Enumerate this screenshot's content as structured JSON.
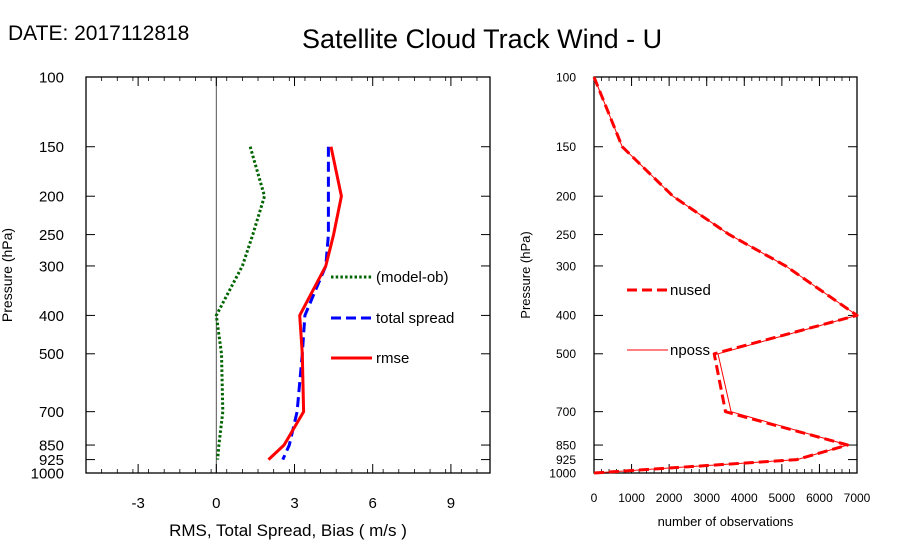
{
  "header": {
    "date_label": "DATE: 2017112818",
    "title": "Satellite Cloud Track Wind - U"
  },
  "chart_data": [
    {
      "type": "line",
      "panel": "left",
      "xlabel": "RMS, Total Spread, Bias ( m/s )",
      "ylabel": "Pressure (hPa)",
      "xlim": [
        -5,
        10.5
      ],
      "ylim": [
        1000,
        100
      ],
      "y_scale": "log",
      "x_ticks": [
        -3,
        0,
        3,
        6,
        9
      ],
      "x_tick_labels": [
        "-3",
        "0",
        "3",
        "6",
        "9"
      ],
      "y_ticks": [
        100,
        150,
        200,
        250,
        300,
        400,
        500,
        700,
        850,
        925,
        1000
      ],
      "y_tick_labels": [
        "100",
        "150",
        "200",
        "250",
        "300",
        "400",
        "500",
        "700",
        "850",
        "925",
        "1000"
      ],
      "zero_line": 0,
      "legend_placement": "right-middle",
      "series": [
        {
          "name": "(model-ob)",
          "color": "#006400",
          "style": "dotted",
          "points": [
            [
              1.3,
              150
            ],
            [
              1.85,
              200
            ],
            [
              1.4,
              250
            ],
            [
              1.0,
              300
            ],
            [
              0.0,
              400
            ],
            [
              0.2,
              500
            ],
            [
              0.25,
              700
            ],
            [
              0.1,
              850
            ],
            [
              0.05,
              925
            ]
          ]
        },
        {
          "name": "total spread",
          "color": "#0000ff",
          "style": "dashed",
          "points": [
            [
              4.3,
              150
            ],
            [
              4.3,
              200
            ],
            [
              4.3,
              250
            ],
            [
              4.2,
              300
            ],
            [
              3.4,
              400
            ],
            [
              3.3,
              500
            ],
            [
              3.1,
              700
            ],
            [
              2.8,
              850
            ],
            [
              2.55,
              925
            ]
          ]
        },
        {
          "name": "rmse",
          "color": "#ff0000",
          "style": "solid",
          "points": [
            [
              4.4,
              150
            ],
            [
              4.8,
              200
            ],
            [
              4.5,
              250
            ],
            [
              4.2,
              300
            ],
            [
              3.2,
              400
            ],
            [
              3.3,
              500
            ],
            [
              3.35,
              700
            ],
            [
              2.6,
              850
            ],
            [
              2.0,
              925
            ]
          ]
        }
      ]
    },
    {
      "type": "line",
      "panel": "right",
      "xlabel": "number of observations",
      "ylabel": "Pressure (hPa)",
      "xlim": [
        0,
        7000
      ],
      "ylim": [
        1000,
        100
      ],
      "y_scale": "log",
      "x_ticks": [
        0,
        1000,
        2000,
        3000,
        4000,
        5000,
        6000,
        7000
      ],
      "x_tick_labels": [
        "0",
        "1000",
        "2000",
        "3000",
        "4000",
        "5000",
        "6000",
        "7000"
      ],
      "y_ticks": [
        100,
        150,
        200,
        250,
        300,
        400,
        500,
        700,
        850,
        925,
        1000
      ],
      "y_tick_labels": [
        "100",
        "150",
        "200",
        "250",
        "300",
        "400",
        "500",
        "700",
        "850",
        "925",
        "1000"
      ],
      "legend_placement": "left-middle",
      "series": [
        {
          "name": "nused",
          "color": "#ff0000",
          "style": "dashed",
          "points": [
            [
              0,
              100
            ],
            [
              750,
              150
            ],
            [
              2100,
              200
            ],
            [
              3600,
              250
            ],
            [
              5100,
              300
            ],
            [
              7000,
              400
            ],
            [
              3200,
              500
            ],
            [
              3500,
              700
            ],
            [
              6750,
              850
            ],
            [
              5400,
              925
            ],
            [
              0,
              1000
            ]
          ]
        },
        {
          "name": "nposs",
          "color": "#ff0000",
          "style": "thin",
          "points": [
            [
              0,
              100
            ],
            [
              750,
              150
            ],
            [
              2100,
              200
            ],
            [
              3600,
              250
            ],
            [
              5100,
              300
            ],
            [
              7000,
              400
            ],
            [
              3300,
              500
            ],
            [
              3650,
              700
            ],
            [
              6750,
              850
            ],
            [
              5400,
              925
            ],
            [
              0,
              1000
            ]
          ]
        }
      ]
    }
  ]
}
